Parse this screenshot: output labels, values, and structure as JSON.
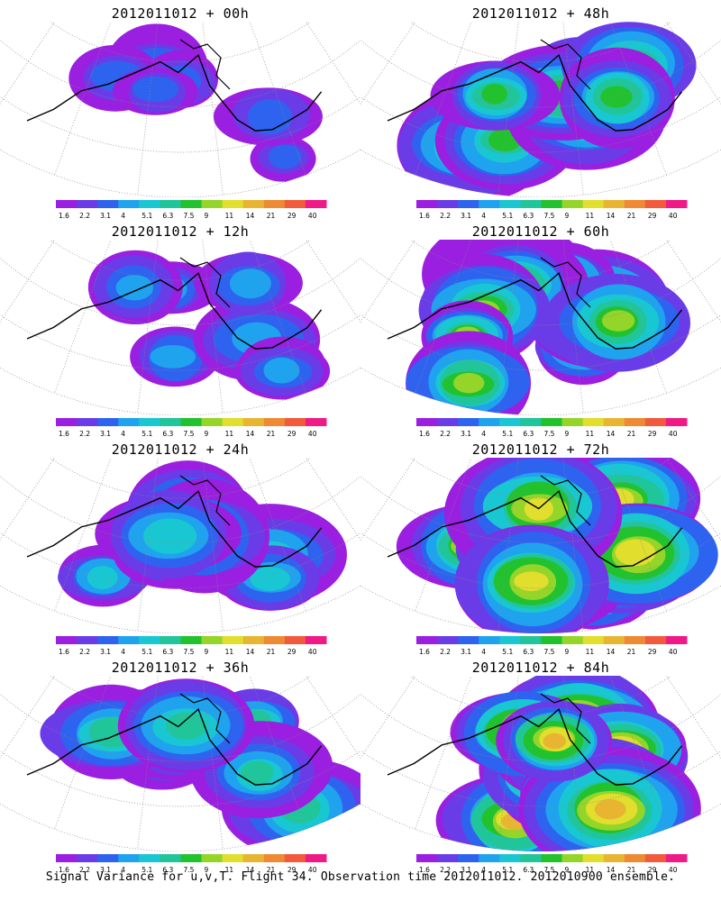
{
  "colorbar": {
    "labels": [
      "1.6",
      "2.2",
      "3.1",
      "4",
      "5.1",
      "6.3",
      "7.5",
      "9",
      "11",
      "14",
      "21",
      "29",
      "40"
    ],
    "colors": [
      "#9a1fe0",
      "#6a3ce8",
      "#2e63f0",
      "#1fa3ee",
      "#19c7d2",
      "#21c59a",
      "#22c22e",
      "#95d52a",
      "#e1de2d",
      "#e8b532",
      "#ee8a33",
      "#f25a3c",
      "#f01a86"
    ]
  },
  "panels": [
    {
      "title": "2012011012 + 00h",
      "intensity": 0.15
    },
    {
      "title": "2012011012 + 48h",
      "intensity": 0.55
    },
    {
      "title": "2012011012 + 12h",
      "intensity": 0.25
    },
    {
      "title": "2012011012 + 60h",
      "intensity": 0.65
    },
    {
      "title": "2012011012 + 24h",
      "intensity": 0.35
    },
    {
      "title": "2012011012 + 72h",
      "intensity": 0.75
    },
    {
      "title": "2012011012 + 36h",
      "intensity": 0.45
    },
    {
      "title": "2012011012 + 84h",
      "intensity": 0.85
    }
  ],
  "footer": "Signal Variance for u,v,T. Flight 34. Observation time 2012011012. 2012010900 ensemble."
}
